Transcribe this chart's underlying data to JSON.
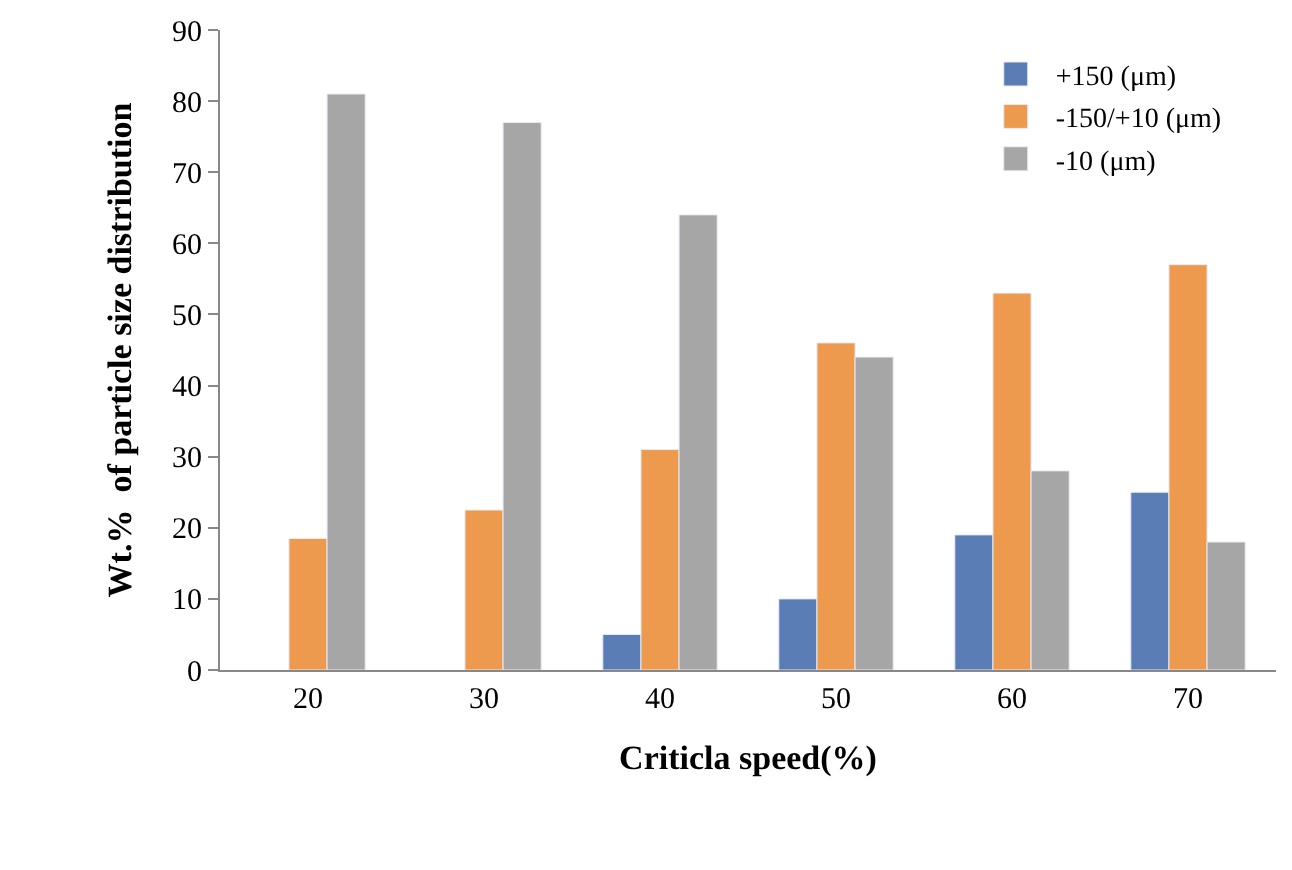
{
  "chart_data": {
    "type": "bar",
    "xlabel": "Criticla speed(%)",
    "ylabel": "Wt.%  of particle size distribution",
    "categories": [
      "20",
      "30",
      "40",
      "50",
      "60",
      "70"
    ],
    "series": [
      {
        "name": "+150 (μm)",
        "color": "#5b7db5",
        "values": [
          null,
          null,
          5,
          10,
          19,
          25
        ]
      },
      {
        "name": "-150/+10 (μm)",
        "color": "#ed9a4e",
        "values": [
          18.5,
          22.5,
          31,
          46,
          53,
          57
        ]
      },
      {
        "name": "-10 (μm)",
        "color": "#a6a6a6",
        "values": [
          81,
          77,
          64,
          44,
          28,
          18
        ]
      }
    ],
    "ylim": [
      0,
      90
    ],
    "yticks": [
      0,
      10,
      20,
      30,
      40,
      50,
      60,
      70,
      80,
      90
    ],
    "legend": "top right"
  }
}
